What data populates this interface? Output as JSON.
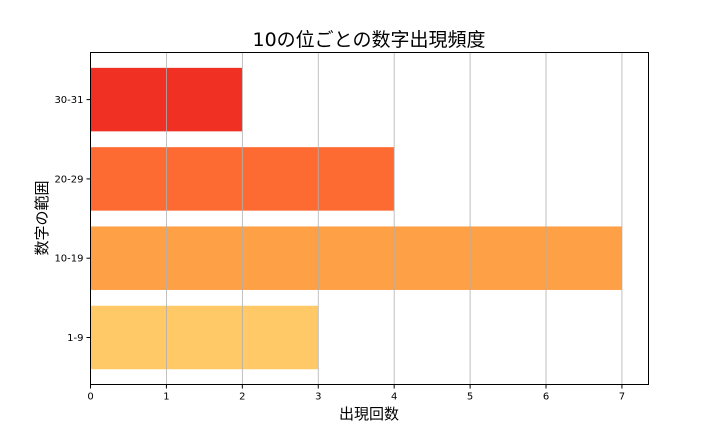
{
  "chart_data": {
    "type": "bar",
    "orientation": "horizontal",
    "title": "10の位ごとの数字出現頻度",
    "xlabel": "出現回数",
    "ylabel": "数字の範囲",
    "categories": [
      "1-9",
      "10-19",
      "20-29",
      "30-31"
    ],
    "values": [
      3,
      7,
      4,
      2
    ],
    "colors": [
      "#fec966",
      "#fea045",
      "#fd6b33",
      "#ef3023"
    ],
    "xlim": [
      0,
      7.35
    ],
    "xticks": [
      "0",
      "1",
      "2",
      "3",
      "4",
      "5",
      "6",
      "7"
    ],
    "grid": "vertical"
  }
}
